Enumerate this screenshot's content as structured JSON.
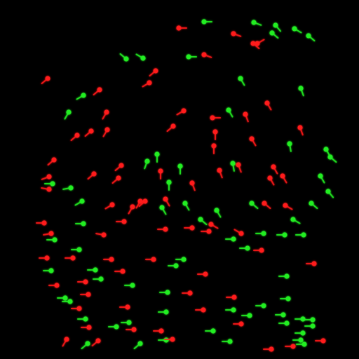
{
  "image": {
    "background_color": "#000000",
    "palette": {
      "red": "#ff1a1a",
      "green": "#22ee22"
    }
  }
}
